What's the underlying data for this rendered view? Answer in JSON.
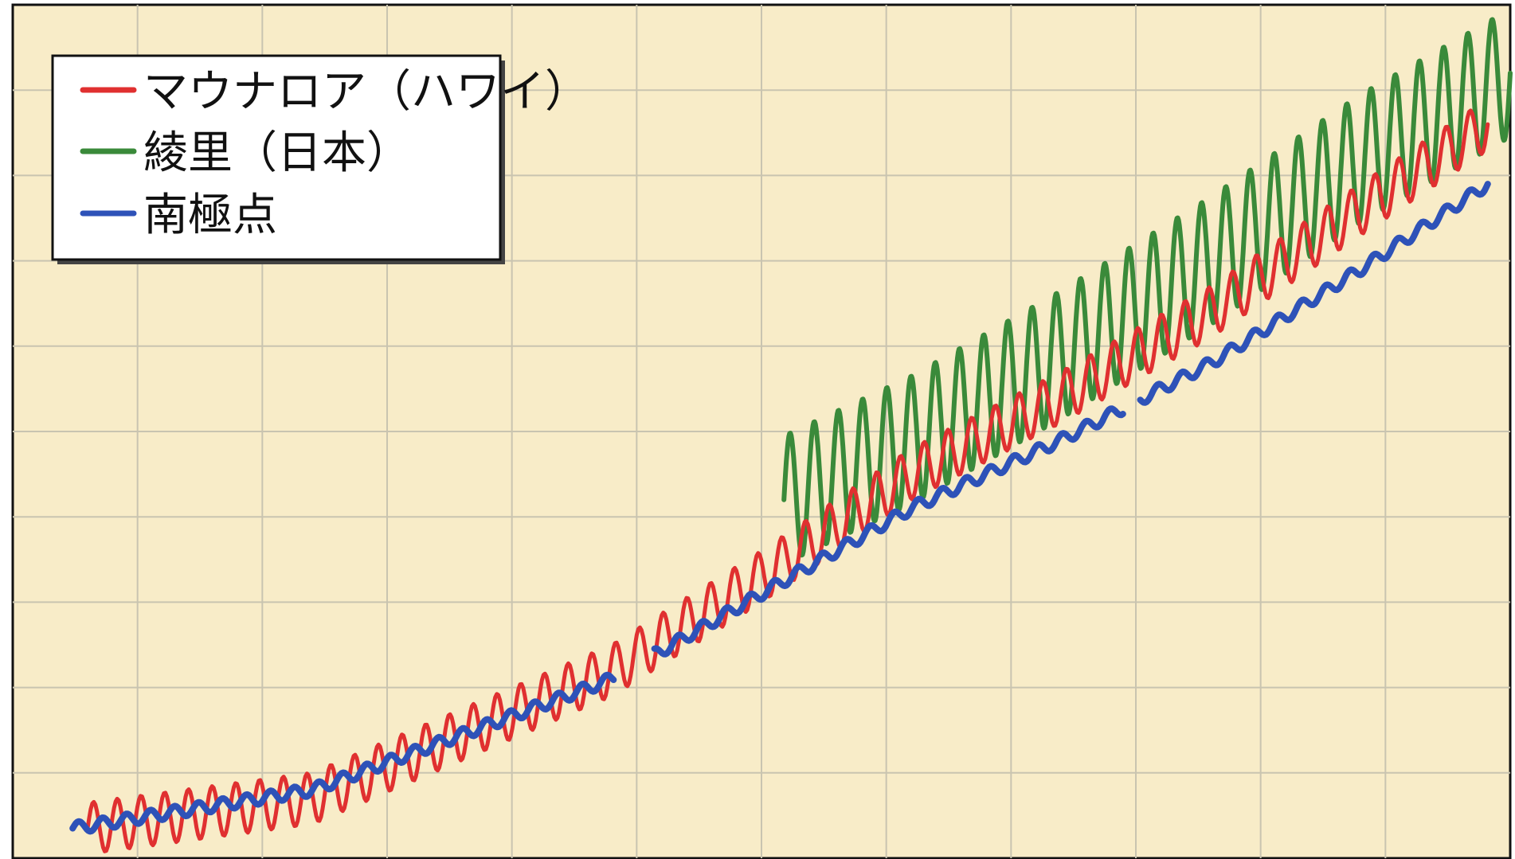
{
  "chart_data": {
    "type": "line",
    "title": "",
    "xlabel": "",
    "ylabel": "",
    "grid": true,
    "legend_position": "top-left",
    "background_color": "#f8ecc8",
    "grid_color": "#c9c4b0",
    "x_range": [
      0,
      1
    ],
    "y_range": [
      0,
      1
    ],
    "legend": [
      {
        "name": "マウナロア（ハワイ）",
        "color": "#e03030"
      },
      {
        "name": "綾里（日本）",
        "color": "#3a8a3a"
      },
      {
        "name": "南極点",
        "color": "#2e52b8"
      }
    ],
    "series": [
      {
        "name": "マウナロア（ハワイ）",
        "color": "#e03030",
        "x_start": 0.05,
        "x_end": 0.985,
        "trend": [
          [
            0.05,
            0.035
          ],
          [
            0.2,
            0.07
          ],
          [
            0.4,
            0.22
          ],
          [
            0.5,
            0.33
          ],
          [
            0.6,
            0.45
          ],
          [
            0.7,
            0.54
          ],
          [
            0.8,
            0.64
          ],
          [
            0.9,
            0.76
          ],
          [
            0.985,
            0.86
          ]
        ],
        "seasonal_amplitude": 0.03,
        "cycles": 59
      },
      {
        "name": "綾里（日本）",
        "color": "#3a8a3a",
        "x_start": 0.515,
        "x_end": 1.0,
        "trend": [
          [
            0.515,
            0.42
          ],
          [
            0.6,
            0.49
          ],
          [
            0.7,
            0.59
          ],
          [
            0.8,
            0.7
          ],
          [
            0.9,
            0.82
          ],
          [
            1.0,
            0.92
          ]
        ],
        "seasonal_amplitude": 0.075,
        "cycles": 30
      },
      {
        "name": "南極点",
        "color": "#2e52b8",
        "x_start": 0.04,
        "x_end": 0.985,
        "trend": [
          [
            0.04,
            0.035
          ],
          [
            0.2,
            0.08
          ],
          [
            0.4,
            0.21
          ],
          [
            0.5,
            0.31
          ],
          [
            0.6,
            0.41
          ],
          [
            0.7,
            0.49
          ],
          [
            0.8,
            0.58
          ],
          [
            0.9,
            0.69
          ],
          [
            0.985,
            0.79
          ]
        ],
        "seasonal_amplitude": 0.007,
        "cycles": 59,
        "gaps": [
          [
            0.402,
            0.428
          ],
          [
            0.742,
            0.752
          ]
        ]
      }
    ]
  }
}
